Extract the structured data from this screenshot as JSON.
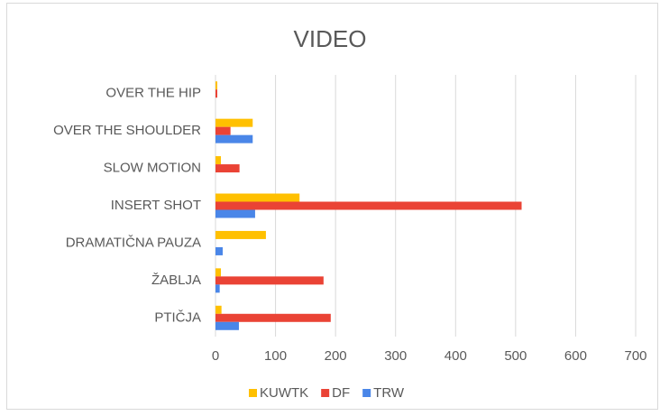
{
  "chart_data": {
    "type": "hbar",
    "title": "VIDEO",
    "categories": [
      "OVER THE HIP",
      "OVER THE SHOULDER",
      "SLOW MOTION",
      "INSERT SHOT",
      "DRAMATIČNA PAUZA",
      "ŽABLJA",
      "PTIČJA"
    ],
    "series": [
      {
        "name": "KUWTK",
        "color": "#ffc000",
        "values": [
          3,
          62,
          9,
          140,
          84,
          9,
          10
        ]
      },
      {
        "name": "DF",
        "color": "#ea4335",
        "values": [
          3,
          25,
          40,
          510,
          0,
          180,
          192
        ]
      },
      {
        "name": "TRW",
        "color": "#4a86e8",
        "values": [
          0,
          62,
          0,
          66,
          12,
          7,
          39
        ]
      }
    ],
    "xlim": [
      0,
      700
    ],
    "xticks": [
      0,
      100,
      200,
      300,
      400,
      500,
      600,
      700
    ],
    "grid": true,
    "legend": "bottom"
  }
}
